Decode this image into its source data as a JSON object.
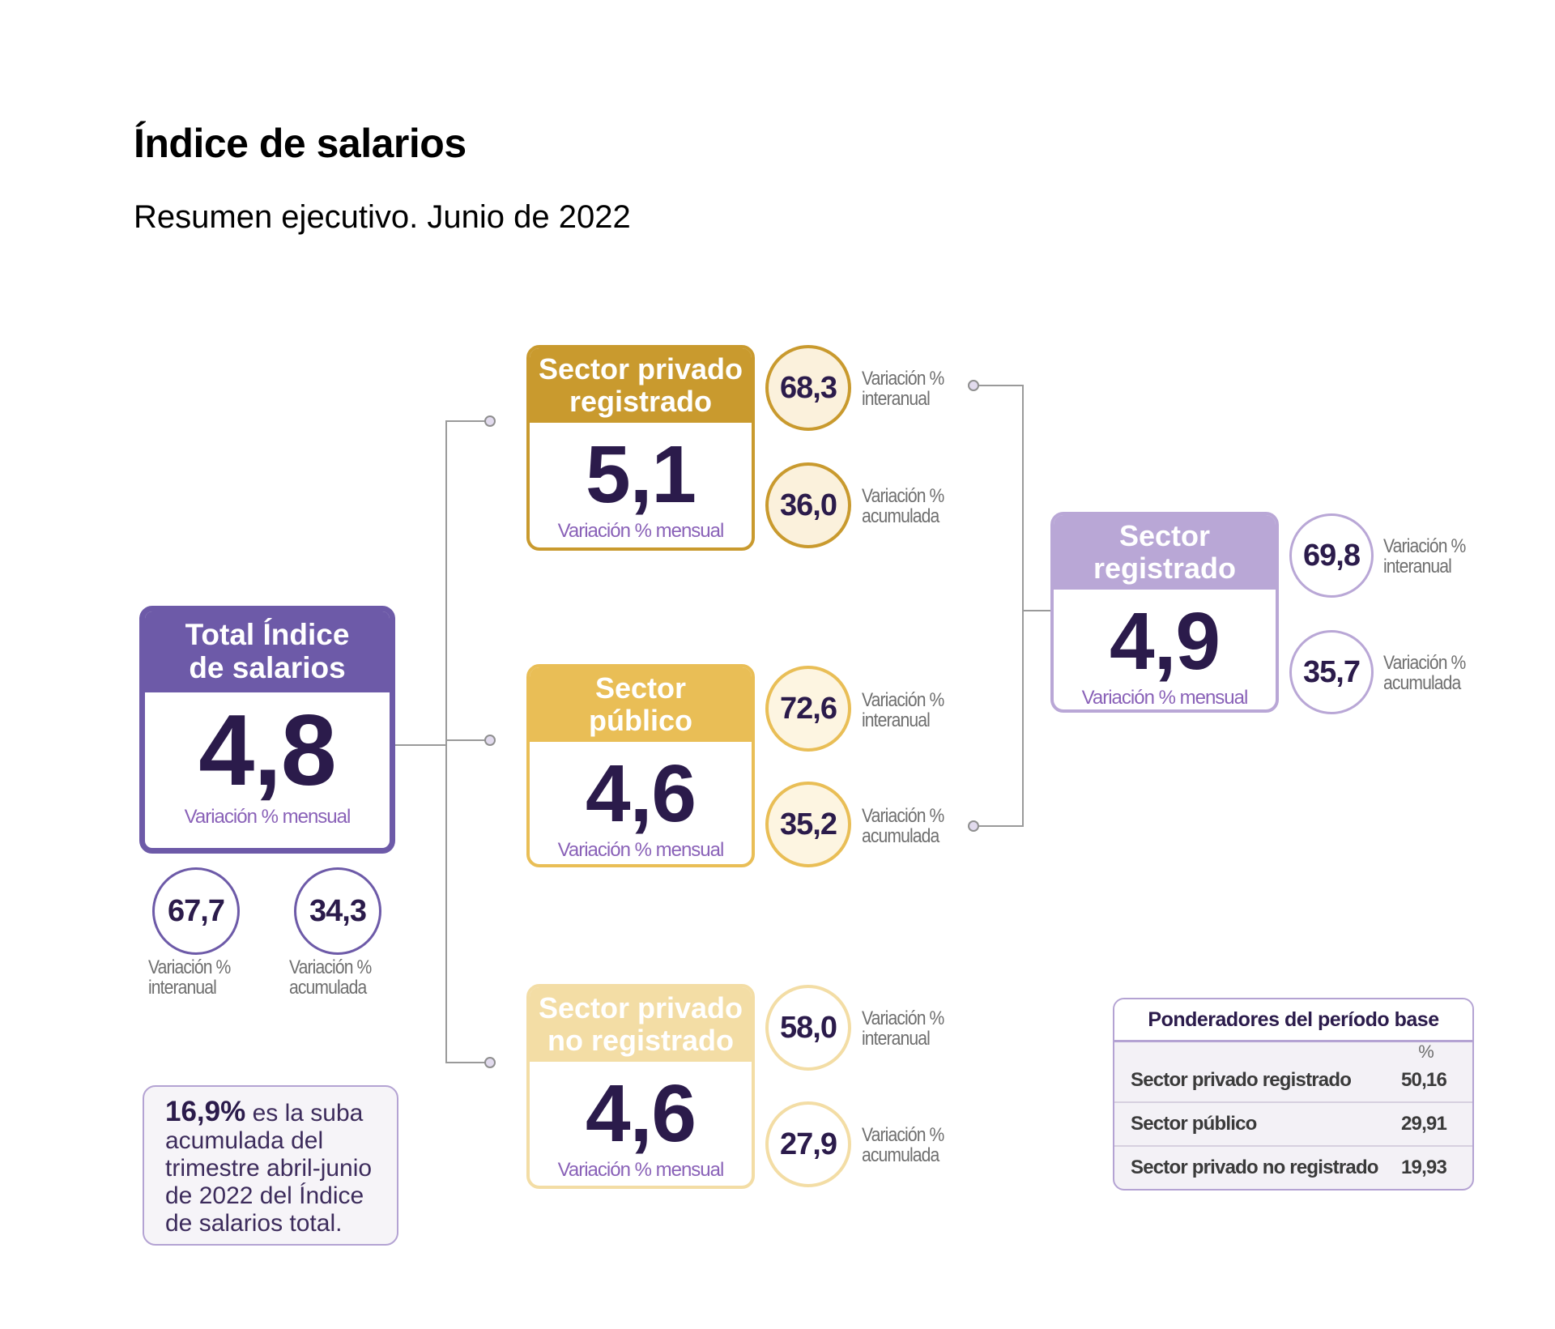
{
  "title": "Índice de salarios",
  "subtitle": "Resumen ejecutivo. Junio de 2022",
  "total": {
    "title": "Total Índice de salarios",
    "value": "4,8",
    "value_label": "Variación % mensual",
    "interanual": {
      "value": "67,7",
      "label": "Variación % interanual"
    },
    "acumulada": {
      "value": "34,3",
      "label": "Variación % acumulada"
    }
  },
  "privado_registrado": {
    "title": "Sector privado registrado",
    "value": "5,1",
    "value_label": "Variación % mensual",
    "interanual": {
      "value": "68,3",
      "label": "Variación % interanual"
    },
    "acumulada": {
      "value": "36,0",
      "label": "Variación % acumulada"
    }
  },
  "publico": {
    "title": "Sector público",
    "value": "4,6",
    "value_label": "Variación % mensual",
    "interanual": {
      "value": "72,6",
      "label": "Variación % interanual"
    },
    "acumulada": {
      "value": "35,2",
      "label": "Variación % acumulada"
    }
  },
  "privado_no_registrado": {
    "title": "Sector privado no registrado",
    "value": "4,6",
    "value_label": "Variación % mensual",
    "interanual": {
      "value": "58,0",
      "label": "Variación % interanual"
    },
    "acumulada": {
      "value": "27,9",
      "label": "Variación % acumulada"
    }
  },
  "registrado": {
    "title": "Sector registrado",
    "value": "4,9",
    "value_label": "Variación % mensual",
    "interanual": {
      "value": "69,8",
      "label": "Variación % interanual"
    },
    "acumulada": {
      "value": "35,7",
      "label": "Variación % acumulada"
    }
  },
  "note": {
    "highlight": "16,9%",
    "text": "es la suba acumulada del trimestre abril-junio de 2022 del Índice de salarios total."
  },
  "ponderadores": {
    "title": "Ponderadores del período base",
    "unit": "%",
    "rows": [
      {
        "label": "Sector privado registrado",
        "value": "50,16"
      },
      {
        "label": "Sector público",
        "value": "29,91"
      },
      {
        "label": "Sector privado no registrado",
        "value": "19,93"
      }
    ]
  },
  "colors": {
    "total": "#6d5aa8",
    "privado_registrado": "#c99a2e",
    "publico": "#e9be56",
    "privado_no_registrado": "#f3dda5",
    "registrado": "#b9a7d6",
    "value_text": "#2b1b4b",
    "label_purple": "#8a62b8"
  }
}
